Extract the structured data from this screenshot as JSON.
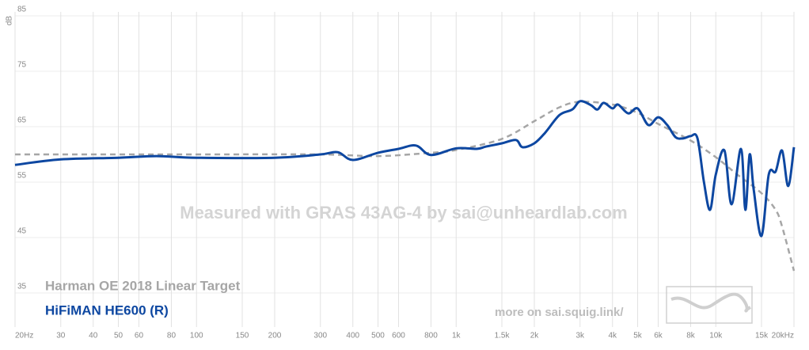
{
  "chart_data": {
    "type": "line",
    "xscale": "log",
    "grid": true,
    "y_label": "dB",
    "watermark": "Measured with GRAS 43AG-4 by sai@unheardlab.com",
    "footer": "more on sai.squig.link/",
    "xlim": [
      20,
      20000
    ],
    "ylim": [
      30,
      85
    ],
    "yticks": [
      35,
      45,
      55,
      65,
      75,
      85
    ],
    "xticks": [
      {
        "value": 20,
        "label": "20Hz"
      },
      30,
      40,
      50,
      60,
      80,
      100,
      150,
      200,
      300,
      400,
      500,
      600,
      800,
      {
        "value": 1000,
        "label": "1k"
      },
      {
        "value": 1500,
        "label": "1.5k"
      },
      {
        "value": 2000,
        "label": "2k"
      },
      {
        "value": 3000,
        "label": "3k"
      },
      {
        "value": 4000,
        "label": "4k"
      },
      {
        "value": 5000,
        "label": "5k"
      },
      {
        "value": 6000,
        "label": "6k"
      },
      {
        "value": 8000,
        "label": "8k"
      },
      {
        "value": 10000,
        "label": "10k"
      },
      {
        "value": 15000,
        "label": "15k"
      },
      {
        "value": 20000,
        "label": "20kHz"
      }
    ],
    "series": [
      {
        "name": "Harman OE 2018 Linear Target",
        "color": "#a6a6a6",
        "dashed": true,
        "x": [
          20,
          100,
          300,
          500,
          800,
          1000,
          1500,
          2000,
          2500,
          3000,
          4000,
          5000,
          6000,
          8000,
          10000,
          12000,
          15000,
          17000,
          18000,
          20000
        ],
        "values": [
          60,
          60,
          60,
          59.7,
          60.3,
          60.8,
          62.8,
          66,
          68.5,
          69.5,
          69,
          67.5,
          65.5,
          62.5,
          59.5,
          56.5,
          53,
          50,
          47,
          39
        ]
      },
      {
        "name": "HiFiMAN HE600 (R)",
        "color": "#0d47a1",
        "dashed": false,
        "x": [
          20,
          30,
          50,
          70,
          100,
          200,
          300,
          350,
          400,
          500,
          600,
          700,
          800,
          1000,
          1200,
          1300,
          1500,
          1700,
          1800,
          2000,
          2200,
          2500,
          2800,
          3000,
          3300,
          3500,
          3700,
          4000,
          4200,
          4600,
          5000,
          5500,
          6000,
          6500,
          7000,
          7500,
          8000,
          8500,
          9000,
          9500,
          10000,
          10800,
          11500,
          12500,
          13000,
          13500,
          14000,
          15000,
          16000,
          17000,
          18000,
          19000,
          20000
        ],
        "values": [
          58.1,
          59.1,
          59.4,
          59.7,
          59.4,
          59.4,
          60,
          60.4,
          59,
          60.3,
          61,
          61.6,
          59.9,
          61.1,
          61,
          61.4,
          62,
          62.6,
          61.3,
          62,
          63.9,
          67.1,
          68.1,
          69.6,
          68.9,
          68.1,
          69.3,
          68.3,
          69,
          67.4,
          68.3,
          65.3,
          66.7,
          65.3,
          63.1,
          62.9,
          63.3,
          62.9,
          55,
          50,
          56.4,
          60.7,
          51,
          61,
          50,
          60,
          53.6,
          45.3,
          56.4,
          56.9,
          60.7,
          54.3,
          61.3
        ]
      }
    ]
  }
}
